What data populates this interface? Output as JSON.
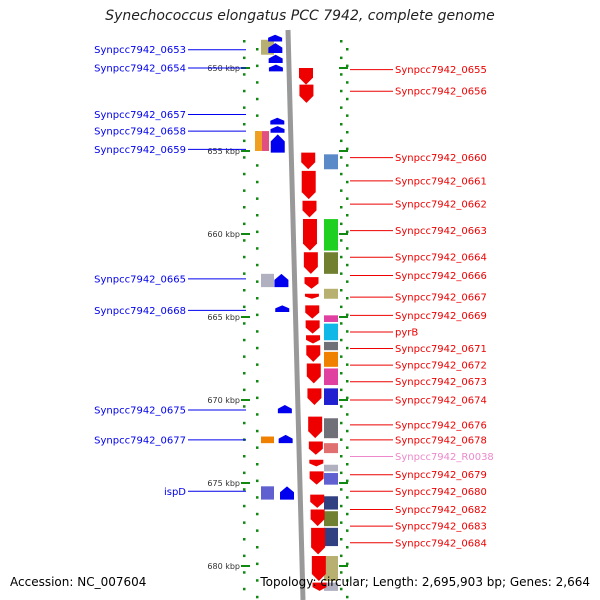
{
  "title": "Synechococcus elongatus PCC 7942, complete genome",
  "footer": {
    "accession": "Accession: NC_007604",
    "summary": "Topology: circular; Length: 2,695,903 bp; Genes: 2,664"
  },
  "colors": {
    "forward": "#ee0000",
    "reverse": "#0000ee",
    "rna": "#ee88cc"
  },
  "kbp_ticks": [
    {
      "kbp": 650,
      "label": "650 kbp"
    },
    {
      "kbp": 655,
      "label": "655 kbp"
    },
    {
      "kbp": 660,
      "label": "660 kbp"
    },
    {
      "kbp": 665,
      "label": "665 kbp"
    },
    {
      "kbp": 670,
      "label": "670 kbp"
    },
    {
      "kbp": 675,
      "label": "675 kbp"
    },
    {
      "kbp": 680,
      "label": "680 kbp"
    }
  ],
  "left_labels": [
    {
      "text": "Synpcc7942_0653",
      "kbp": 648.9
    },
    {
      "text": "Synpcc7942_0654",
      "kbp": 650.0
    },
    {
      "text": "Synpcc7942_0657",
      "kbp": 652.8
    },
    {
      "text": "Synpcc7942_0658",
      "kbp": 653.8
    },
    {
      "text": "Synpcc7942_0659",
      "kbp": 654.9
    },
    {
      "text": "Synpcc7942_0665",
      "kbp": 662.7
    },
    {
      "text": "Synpcc7942_0668",
      "kbp": 664.6
    },
    {
      "text": "Synpcc7942_0675",
      "kbp": 670.6
    },
    {
      "text": "Synpcc7942_0677",
      "kbp": 672.4
    },
    {
      "text": "ispD",
      "kbp": 675.5
    }
  ],
  "right_labels": [
    {
      "text": "Synpcc7942_0655",
      "kbp": 650.1
    },
    {
      "text": "Synpcc7942_0656",
      "kbp": 651.4
    },
    {
      "text": "Synpcc7942_0660",
      "kbp": 655.4
    },
    {
      "text": "Synpcc7942_0661",
      "kbp": 656.8
    },
    {
      "text": "Synpcc7942_0662",
      "kbp": 658.2
    },
    {
      "text": "Synpcc7942_0663",
      "kbp": 659.8
    },
    {
      "text": "Synpcc7942_0664",
      "kbp": 661.4
    },
    {
      "text": "Synpcc7942_0666",
      "kbp": 662.5
    },
    {
      "text": "Synpcc7942_0667",
      "kbp": 663.8
    },
    {
      "text": "Synpcc7942_0669",
      "kbp": 664.9
    },
    {
      "text": "pyrB",
      "kbp": 665.9
    },
    {
      "text": "Synpcc7942_0671",
      "kbp": 666.9
    },
    {
      "text": "Synpcc7942_0672",
      "kbp": 667.9
    },
    {
      "text": "Synpcc7942_0673",
      "kbp": 668.9
    },
    {
      "text": "Synpcc7942_0674",
      "kbp": 670.0
    },
    {
      "text": "Synpcc7942_0676",
      "kbp": 671.5
    },
    {
      "text": "Synpcc7942_0678",
      "kbp": 672.4
    },
    {
      "text": "Synpcc7942_R0038",
      "kbp": 673.4,
      "rna": true
    },
    {
      "text": "Synpcc7942_0679",
      "kbp": 674.5
    },
    {
      "text": "Synpcc7942_0680",
      "kbp": 675.5
    },
    {
      "text": "Synpcc7942_0682",
      "kbp": 676.6
    },
    {
      "text": "Synpcc7942_0683",
      "kbp": 677.6
    },
    {
      "text": "Synpcc7942_0684",
      "kbp": 678.6
    }
  ],
  "forward_genes": [
    {
      "start": 650.0,
      "end": 651.0
    },
    {
      "start": 651.0,
      "end": 652.1
    },
    {
      "start": 655.1,
      "end": 656.1
    },
    {
      "start": 656.2,
      "end": 657.9
    },
    {
      "start": 658.0,
      "end": 659.0
    },
    {
      "start": 659.1,
      "end": 661.0
    },
    {
      "start": 661.1,
      "end": 662.4
    },
    {
      "start": 662.6,
      "end": 663.3
    },
    {
      "start": 663.6,
      "end": 663.9
    },
    {
      "start": 664.3,
      "end": 665.1
    },
    {
      "start": 665.2,
      "end": 666.0
    },
    {
      "start": 666.1,
      "end": 666.6
    },
    {
      "start": 666.7,
      "end": 667.7
    },
    {
      "start": 667.8,
      "end": 669.0
    },
    {
      "start": 669.3,
      "end": 670.3
    },
    {
      "start": 671.0,
      "end": 672.3
    },
    {
      "start": 672.5,
      "end": 673.3
    },
    {
      "start": 673.6,
      "end": 674.0
    },
    {
      "start": 674.3,
      "end": 675.1
    },
    {
      "start": 675.7,
      "end": 676.5
    },
    {
      "start": 676.6,
      "end": 677.6
    },
    {
      "start": 677.7,
      "end": 679.3
    },
    {
      "start": 679.4,
      "end": 680.9
    },
    {
      "start": 681.0,
      "end": 681.5
    }
  ],
  "reverse_genes": [
    {
      "start": 648.0,
      "end": 648.4
    },
    {
      "start": 648.5,
      "end": 649.1
    },
    {
      "start": 649.2,
      "end": 649.7
    },
    {
      "start": 649.8,
      "end": 650.2
    },
    {
      "start": 653.0,
      "end": 653.4
    },
    {
      "start": 653.5,
      "end": 653.9
    },
    {
      "start": 654.0,
      "end": 655.1
    },
    {
      "start": 662.4,
      "end": 663.2
    },
    {
      "start": 664.3,
      "end": 664.7
    },
    {
      "start": 670.3,
      "end": 670.8
    },
    {
      "start": 672.1,
      "end": 672.6
    },
    {
      "start": 675.2,
      "end": 676.0
    }
  ],
  "left_products": [
    {
      "start": 648.3,
      "end": 649.2,
      "color": "#b8b070"
    },
    {
      "start": 653.8,
      "end": 655.0,
      "color": "#f0a020"
    },
    {
      "start": 653.8,
      "end": 655.0,
      "color": "#e05080"
    },
    {
      "start": 662.4,
      "end": 663.2,
      "color": "#b0b0c0"
    },
    {
      "start": 672.2,
      "end": 672.6,
      "color": "#f08000"
    },
    {
      "start": 675.2,
      "end": 676.0,
      "color": "#6060d0"
    }
  ],
  "right_products": [
    {
      "start": 655.2,
      "end": 656.1,
      "color": "#5a8ac8"
    },
    {
      "start": 659.1,
      "end": 661.0,
      "color": "#20d020"
    },
    {
      "start": 661.1,
      "end": 662.4,
      "color": "#708030"
    },
    {
      "start": 663.3,
      "end": 663.9,
      "color": "#b8b070"
    },
    {
      "start": 664.9,
      "end": 665.3,
      "color": "#e040a0"
    },
    {
      "start": 665.4,
      "end": 666.4,
      "color": "#10b8e8"
    },
    {
      "start": 666.5,
      "end": 667.0,
      "color": "#707078"
    },
    {
      "start": 667.1,
      "end": 668.0,
      "color": "#f08000"
    },
    {
      "start": 668.1,
      "end": 669.1,
      "color": "#e040a0"
    },
    {
      "start": 669.3,
      "end": 670.3,
      "color": "#2020d0"
    },
    {
      "start": 671.1,
      "end": 672.3,
      "color": "#707078"
    },
    {
      "start": 672.6,
      "end": 673.2,
      "color": "#e07070"
    },
    {
      "start": 673.9,
      "end": 674.3,
      "color": "#b0b0c0"
    },
    {
      "start": 674.4,
      "end": 675.1,
      "color": "#6060d0"
    },
    {
      "start": 675.8,
      "end": 676.6,
      "color": "#304080"
    },
    {
      "start": 676.7,
      "end": 677.6,
      "color": "#708030"
    },
    {
      "start": 677.7,
      "end": 678.8,
      "color": "#304080"
    },
    {
      "start": 679.4,
      "end": 680.9,
      "color": "#b8b070"
    },
    {
      "start": 681.0,
      "end": 681.5,
      "color": "#b0b0c0"
    }
  ]
}
